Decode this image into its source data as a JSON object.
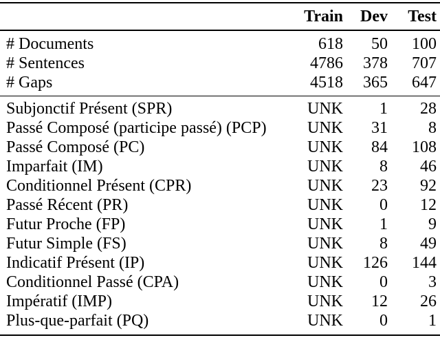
{
  "table": {
    "header": {
      "train": "Train",
      "dev": "Dev",
      "test": "Test"
    },
    "stats_rows": [
      {
        "label": "# Documents",
        "train": "618",
        "dev": "50",
        "test": "100"
      },
      {
        "label": "# Sentences",
        "train": "4786",
        "dev": "378",
        "test": "707"
      },
      {
        "label": "# Gaps",
        "train": "4518",
        "dev": "365",
        "test": "647"
      }
    ],
    "tense_rows": [
      {
        "label": "Subjonctif Présent (SPR)",
        "train": "UNK",
        "dev": "1",
        "test": "28"
      },
      {
        "label": "Passé Composé (participe passé) (PCP)",
        "train": "UNK",
        "dev": "31",
        "test": "8"
      },
      {
        "label": "Passé Composé (PC)",
        "train": "UNK",
        "dev": "84",
        "test": "108"
      },
      {
        "label": "Imparfait (IM)",
        "train": "UNK",
        "dev": "8",
        "test": "46"
      },
      {
        "label": "Conditionnel Présent (CPR)",
        "train": "UNK",
        "dev": "23",
        "test": "92"
      },
      {
        "label": "Passé Récent (PR)",
        "train": "UNK",
        "dev": "0",
        "test": "12"
      },
      {
        "label": "Futur Proche (FP)",
        "train": "UNK",
        "dev": "1",
        "test": "9"
      },
      {
        "label": "Futur Simple (FS)",
        "train": "UNK",
        "dev": "8",
        "test": "49"
      },
      {
        "label": "Indicatif Présent (IP)",
        "train": "UNK",
        "dev": "126",
        "test": "144"
      },
      {
        "label": "Conditionnel Passé (CPA)",
        "train": "UNK",
        "dev": "0",
        "test": "3"
      },
      {
        "label": "Impératif (IMP)",
        "train": "UNK",
        "dev": "12",
        "test": "26"
      },
      {
        "label": "Plus-que-parfait (PQ)",
        "train": "UNK",
        "dev": "0",
        "test": "1"
      }
    ]
  }
}
